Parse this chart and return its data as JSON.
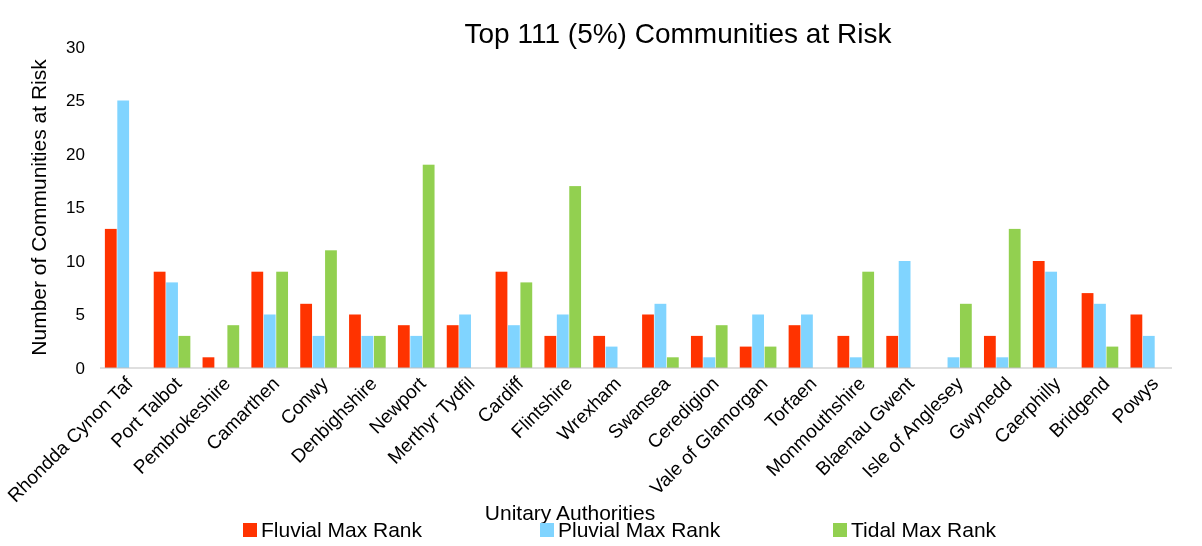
{
  "chart_data": {
    "type": "bar",
    "title": "Top 111 (5%) Communities at Risk",
    "xlabel": "Unitary Authorities",
    "ylabel": "Number of Communities at Risk",
    "categories": [
      "Rhondda Cynon Taf",
      "Port Talbot",
      "Pembrokeshire",
      "Camarthen",
      "Conwy",
      "Denbighshire",
      "Newport",
      "Merthyr Tydfil",
      "Cardiff",
      "Flintshire",
      "Wrexham",
      "Swansea",
      "Ceredigion",
      "Vale of Glamorgan",
      "Torfaen",
      "Monmouthshire",
      "Blaenau Gwent",
      "Isle of Anglesey",
      "Gwynedd",
      "Caerphilly",
      "Bridgend",
      "Powys"
    ],
    "series": [
      {
        "name": "Fluvial Max Rank",
        "color": "#ff3300",
        "values": [
          13,
          9,
          1,
          9,
          6,
          5,
          4,
          4,
          9,
          3,
          3,
          5,
          3,
          2,
          4,
          3,
          3,
          0,
          3,
          10,
          7,
          5
        ]
      },
      {
        "name": "Pluvial Max Rank",
        "color": "#80d4ff",
        "values": [
          25,
          8,
          0,
          5,
          3,
          3,
          3,
          5,
          4,
          5,
          2,
          6,
          1,
          5,
          5,
          1,
          10,
          1,
          1,
          9,
          6,
          3
        ]
      },
      {
        "name": "Tidal Max Rank",
        "color": "#92d050",
        "values": [
          0,
          3,
          4,
          9,
          11,
          3,
          19,
          0,
          8,
          17,
          0,
          1,
          4,
          2,
          0,
          9,
          0,
          6,
          13,
          0,
          2,
          0
        ]
      }
    ],
    "ylim": [
      0,
      30
    ],
    "yticks": [
      0,
      5,
      10,
      15,
      20,
      25,
      30
    ],
    "grid": false,
    "legend": "bottom"
  }
}
